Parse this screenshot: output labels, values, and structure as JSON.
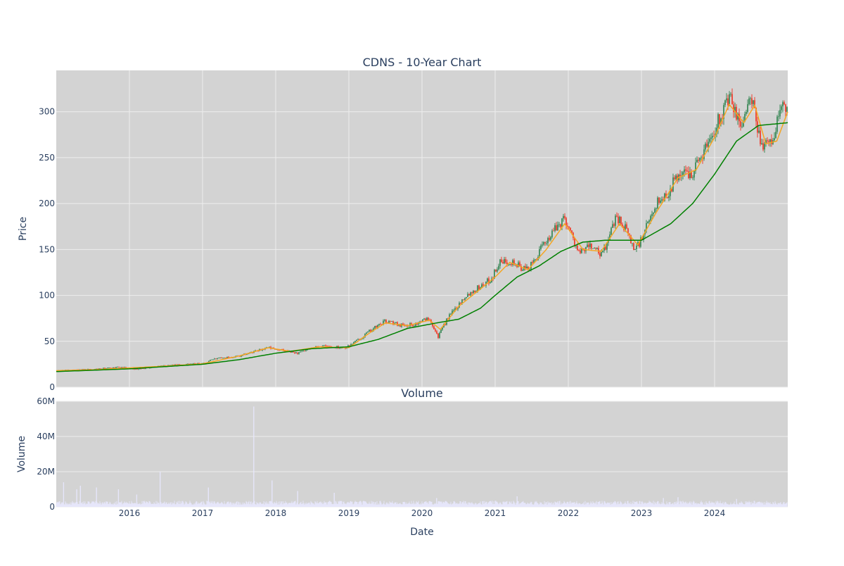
{
  "colors": {
    "plot_bg": "#d3d3d3",
    "grid": "#eeeeee",
    "text": "#2a3f5f",
    "increasing": "#3d8a5a",
    "decreasing": "#ef4030",
    "ma_short": "#f5a623",
    "ma_long": "#008000",
    "volume": "#e6e6fa"
  },
  "chart_data": [
    {
      "type": "candlestick",
      "title": "CDNS - 10-Year Chart",
      "ylabel": "Price",
      "ylim": [
        0,
        345
      ],
      "yticks": [
        0,
        50,
        100,
        150,
        200,
        250,
        300
      ],
      "xlim": [
        2015.0,
        2025.0
      ],
      "grid": true,
      "price_path": [
        [
          2015.0,
          18
        ],
        [
          2015.5,
          19.5
        ],
        [
          2015.9,
          22
        ],
        [
          2016.1,
          19.5
        ],
        [
          2016.4,
          23
        ],
        [
          2016.9,
          25.5
        ],
        [
          2017.05,
          26
        ],
        [
          2017.1,
          30
        ],
        [
          2017.5,
          34
        ],
        [
          2017.9,
          43
        ],
        [
          2018.1,
          40
        ],
        [
          2018.3,
          37
        ],
        [
          2018.6,
          45
        ],
        [
          2018.95,
          43
        ],
        [
          2019.1,
          50
        ],
        [
          2019.3,
          62
        ],
        [
          2019.5,
          72
        ],
        [
          2019.7,
          68
        ],
        [
          2019.9,
          68
        ],
        [
          2020.1,
          76
        ],
        [
          2020.22,
          55
        ],
        [
          2020.35,
          75
        ],
        [
          2020.6,
          100
        ],
        [
          2020.8,
          110
        ],
        [
          2020.95,
          118
        ],
        [
          2021.05,
          135
        ],
        [
          2021.2,
          138
        ],
        [
          2021.3,
          133
        ],
        [
          2021.4,
          128
        ],
        [
          2021.5,
          133
        ],
        [
          2021.7,
          160
        ],
        [
          2021.85,
          175
        ],
        [
          2021.95,
          185
        ],
        [
          2022.05,
          165
        ],
        [
          2022.15,
          145
        ],
        [
          2022.3,
          155
        ],
        [
          2022.45,
          143
        ],
        [
          2022.55,
          160
        ],
        [
          2022.65,
          188
        ],
        [
          2022.8,
          170
        ],
        [
          2022.9,
          150
        ],
        [
          2023.0,
          160
        ],
        [
          2023.2,
          200
        ],
        [
          2023.35,
          210
        ],
        [
          2023.5,
          232
        ],
        [
          2023.7,
          235
        ],
        [
          2023.9,
          265
        ],
        [
          2024.1,
          300
        ],
        [
          2024.2,
          315
        ],
        [
          2024.35,
          285
        ],
        [
          2024.5,
          315
        ],
        [
          2024.6,
          275
        ],
        [
          2024.7,
          262
        ],
        [
          2024.8,
          270
        ],
        [
          2024.9,
          305
        ],
        [
          2025.0,
          303
        ]
      ],
      "series": [
        {
          "values": [
            [
              2015.0,
              18
            ],
            [
              2015.5,
              19
            ],
            [
              2016.0,
              21
            ],
            [
              2016.5,
              23
            ],
            [
              2017.0,
              25.5
            ],
            [
              2017.5,
              34
            ],
            [
              2017.9,
              43
            ],
            [
              2018.2,
              39
            ],
            [
              2018.6,
              44
            ],
            [
              2019.0,
              43
            ],
            [
              2019.3,
              60
            ],
            [
              2019.5,
              70
            ],
            [
              2019.8,
              67
            ],
            [
              2020.1,
              73
            ],
            [
              2020.25,
              63
            ],
            [
              2020.5,
              88
            ],
            [
              2020.8,
              107
            ],
            [
              2021.0,
              120
            ],
            [
              2021.2,
              136
            ],
            [
              2021.45,
              128
            ],
            [
              2021.7,
              150
            ],
            [
              2021.95,
              178
            ],
            [
              2022.2,
              150
            ],
            [
              2022.45,
              148
            ],
            [
              2022.7,
              178
            ],
            [
              2022.95,
              155
            ],
            [
              2023.2,
              190
            ],
            [
              2023.5,
              228
            ],
            [
              2023.75,
              237
            ],
            [
              2024.0,
              272
            ],
            [
              2024.2,
              308
            ],
            [
              2024.4,
              288
            ],
            [
              2024.55,
              307
            ],
            [
              2024.7,
              265
            ],
            [
              2024.85,
              268
            ],
            [
              2025.0,
              300
            ]
          ]
        },
        {
          "values": [
            [
              2015.0,
              17
            ],
            [
              2016.0,
              20
            ],
            [
              2017.0,
              25
            ],
            [
              2017.5,
              30
            ],
            [
              2018.0,
              37
            ],
            [
              2018.5,
              42
            ],
            [
              2019.0,
              44
            ],
            [
              2019.4,
              52
            ],
            [
              2019.8,
              64
            ],
            [
              2020.2,
              70
            ],
            [
              2020.5,
              74
            ],
            [
              2020.8,
              86
            ],
            [
              2021.0,
              100
            ],
            [
              2021.3,
              120
            ],
            [
              2021.6,
              132
            ],
            [
              2021.9,
              148
            ],
            [
              2022.2,
              158
            ],
            [
              2022.5,
              160
            ],
            [
              2022.8,
              160
            ],
            [
              2023.0,
              160
            ],
            [
              2023.4,
              178
            ],
            [
              2023.7,
              200
            ],
            [
              2024.0,
              232
            ],
            [
              2024.3,
              268
            ],
            [
              2024.6,
              285
            ],
            [
              2025.0,
              288
            ]
          ]
        }
      ]
    },
    {
      "type": "bar",
      "title": "Volume",
      "xlabel": "Date",
      "ylabel": "Volume",
      "ylim": [
        0,
        60000000
      ],
      "yticks": [
        0,
        20000000,
        40000000,
        60000000
      ],
      "ytick_labels": [
        "0",
        "20M",
        "40M",
        "60M"
      ],
      "xticks": [
        2016,
        2017,
        2018,
        2019,
        2020,
        2021,
        2022,
        2023,
        2024
      ],
      "xtick_labels": [
        "2016",
        "2017",
        "2018",
        "2019",
        "2020",
        "2021",
        "2022",
        "2023",
        "2024"
      ],
      "baseline": 2500000,
      "spikes": [
        [
          2015.1,
          14000000
        ],
        [
          2015.28,
          10000000
        ],
        [
          2015.33,
          12000000
        ],
        [
          2015.55,
          11000000
        ],
        [
          2015.85,
          10000000
        ],
        [
          2016.1,
          7000000
        ],
        [
          2016.42,
          20000000
        ],
        [
          2017.08,
          11000000
        ],
        [
          2017.7,
          57000000
        ],
        [
          2017.95,
          15000000
        ],
        [
          2018.3,
          9000000
        ],
        [
          2018.8,
          8000000
        ],
        [
          2020.2,
          5000000
        ],
        [
          2021.3,
          6000000
        ],
        [
          2023.3,
          5000000
        ],
        [
          2023.5,
          5500000
        ],
        [
          2024.3,
          4500000
        ]
      ]
    }
  ]
}
